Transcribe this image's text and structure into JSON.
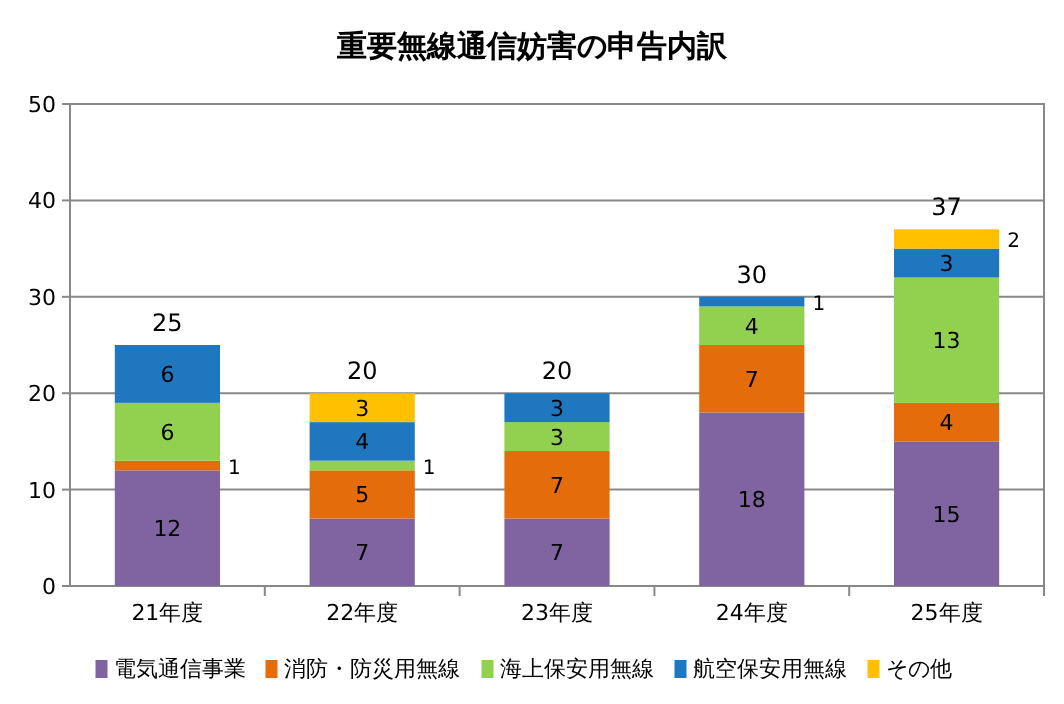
{
  "chart_data": {
    "type": "bar",
    "title": "重要無線通信妨害の申告内訳",
    "stacked": true,
    "data_labels": true,
    "grid": "y",
    "legend": "bottom",
    "categories": [
      "21年度",
      "22年度",
      "23年度",
      "24年度",
      "25年度"
    ],
    "ylim": [
      0,
      50
    ],
    "yticks": [
      0,
      10,
      20,
      30,
      40,
      50
    ],
    "series": [
      {
        "name": "電気通信事業",
        "color": "#8064a2",
        "values": [
          12,
          7,
          7,
          18,
          15
        ]
      },
      {
        "name": "消防・防災用無線",
        "color": "#e46c0a",
        "values": [
          1,
          5,
          7,
          7,
          4
        ]
      },
      {
        "name": "海上保安用無線",
        "color": "#92d050",
        "values": [
          6,
          1,
          3,
          4,
          13
        ]
      },
      {
        "name": "航空保安用無線",
        "color": "#1f77c0",
        "values": [
          6,
          4,
          3,
          1,
          3
        ]
      },
      {
        "name": "その他",
        "color": "#ffc000",
        "values": [
          null,
          3,
          null,
          null,
          2
        ]
      }
    ],
    "totals": [
      "25",
      "20",
      "20",
      "30",
      "37"
    ]
  }
}
